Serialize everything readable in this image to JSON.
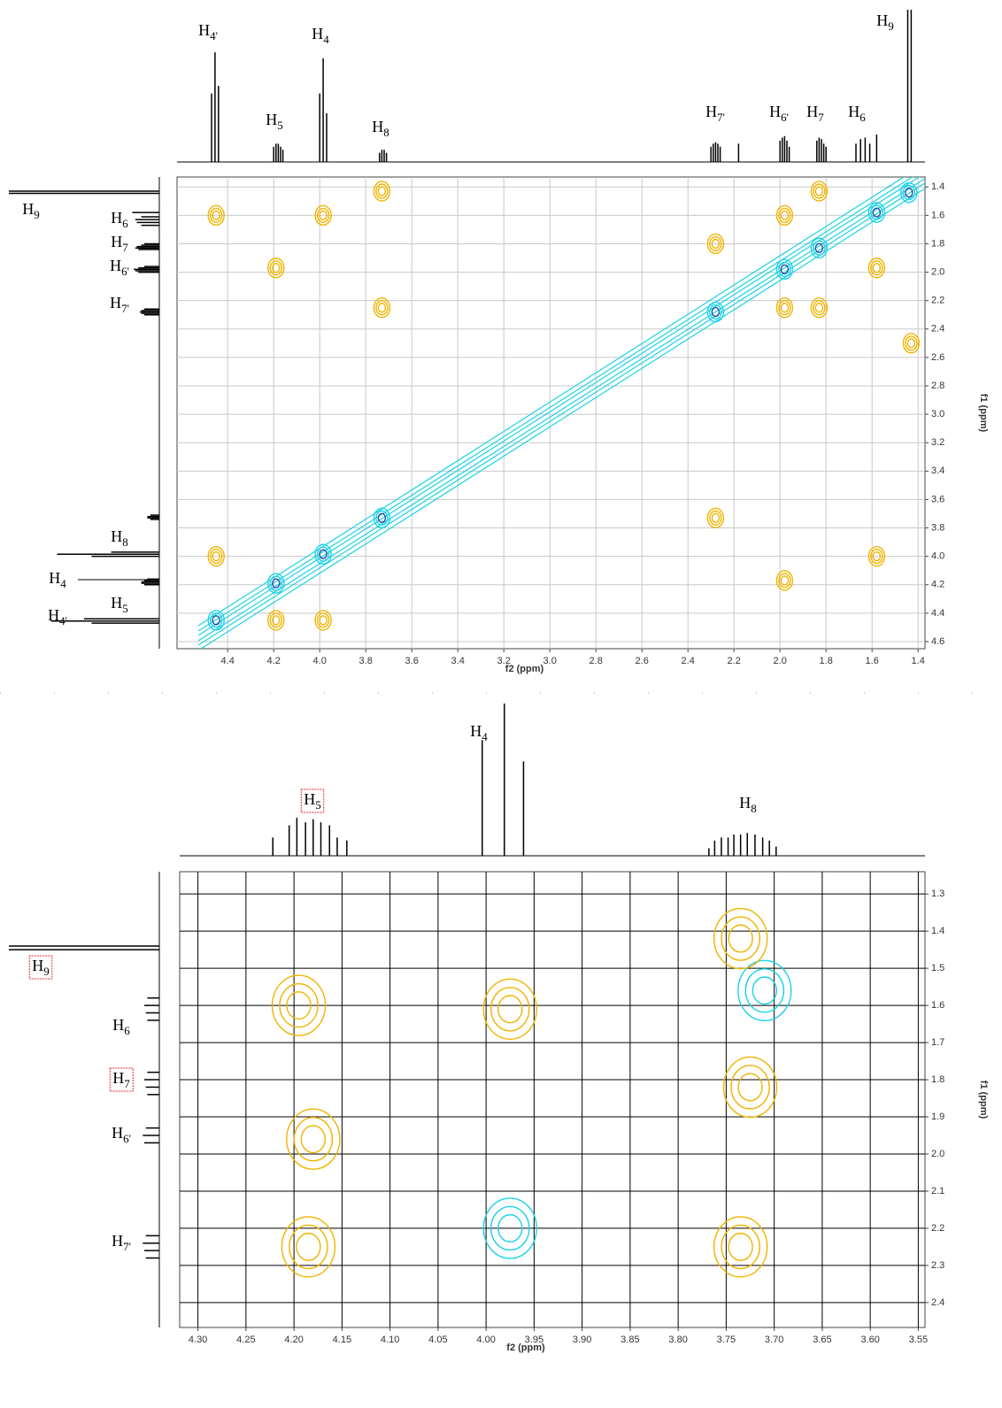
{
  "chart_data": [
    {
      "type": "contour",
      "x_label": "f2 (ppm)",
      "y_label": "f1 (ppm)",
      "xlim": [
        4.62,
        1.37
      ],
      "ylim": [
        1.33,
        4.65
      ],
      "xticks": [
        4.4,
        4.2,
        {
          "value": 4,
          "label": "4.0"
        },
        3.8,
        3.6,
        3.4,
        3.2,
        {
          "value": 3,
          "label": "3.0"
        },
        2.8,
        2.6,
        2.4,
        2.2,
        {
          "value": 2,
          "label": "2.0"
        },
        1.8,
        1.6,
        1.4
      ],
      "yticks": [
        1.4,
        1.6,
        1.8,
        {
          "value": 2,
          "label": "2.0"
        },
        2.2,
        2.4,
        2.6,
        2.8,
        {
          "value": 3,
          "label": "3.0"
        },
        3.2,
        3.4,
        3.6,
        3.8,
        {
          "value": 4,
          "label": "4.0"
        },
        4.2,
        4.4,
        4.6
      ],
      "grid": true,
      "grid_color": "#c8c8c8",
      "diagonal": true,
      "series": [
        {
          "color": "#1ad3e6",
          "center_color": "#2a4fa0",
          "x": [
            4.45,
            4.19,
            3.985,
            3.73,
            2.28,
            1.98,
            1.83,
            1.58,
            1.44
          ],
          "y": [
            4.45,
            4.19,
            3.985,
            3.73,
            2.28,
            1.98,
            1.83,
            1.58,
            1.44
          ]
        },
        {
          "color": "#f0b400",
          "x": [
            3.73,
            4.45,
            3.985,
            4.19,
            3.73,
            2.28,
            1.98,
            1.98,
            1.83,
            1.83,
            1.58,
            2.28,
            1.98,
            4.45,
            3.985,
            4.19,
            1.43,
            1.58
          ],
          "y": [
            1.43,
            1.6,
            1.6,
            1.97,
            2.25,
            1.8,
            1.6,
            2.25,
            2.25,
            1.43,
            1.97,
            3.73,
            4.17,
            4.0,
            4.45,
            4.45,
            2.5,
            4.0
          ]
        }
      ],
      "f2_projection": {
        "x": [
          4.47,
          4.455,
          4.44,
          4.2,
          4.19,
          4.18,
          4.17,
          4.16,
          4.0,
          3.985,
          3.97,
          3.74,
          3.73,
          3.72,
          3.71,
          2.3,
          2.29,
          2.28,
          2.27,
          2.26,
          2.18,
          2.0,
          1.99,
          1.98,
          1.97,
          1.96,
          1.84,
          1.83,
          1.82,
          1.81,
          1.8,
          1.67,
          1.65,
          1.63,
          1.61,
          1.58,
          1.445,
          1.43
        ],
        "values": [
          45,
          72,
          50,
          10,
          12,
          12,
          10,
          8,
          45,
          68,
          32,
          6,
          8,
          8,
          6,
          10,
          12,
          13,
          12,
          10,
          12,
          14,
          16,
          17,
          14,
          10,
          14,
          16,
          15,
          12,
          10,
          12,
          15,
          16,
          12,
          18,
          100,
          100
        ]
      },
      "f1_projection": {
        "x": [
          4.47,
          4.455,
          4.44,
          4.2,
          4.19,
          4.18,
          4.17,
          4.16,
          4.0,
          3.985,
          3.97,
          3.74,
          3.73,
          3.72,
          3.71,
          2.3,
          2.29,
          2.28,
          2.27,
          2.26,
          2.0,
          1.99,
          1.98,
          1.97,
          1.96,
          1.84,
          1.83,
          1.82,
          1.81,
          1.8,
          1.67,
          1.65,
          1.63,
          1.61,
          1.58,
          1.445,
          1.43
        ],
        "values": [
          45,
          72,
          50,
          10,
          12,
          12,
          10,
          8,
          45,
          68,
          32,
          6,
          8,
          8,
          6,
          10,
          12,
          13,
          12,
          10,
          14,
          16,
          17,
          14,
          10,
          14,
          16,
          15,
          12,
          10,
          12,
          15,
          16,
          12,
          18,
          100,
          100
        ]
      },
      "top_labels": [
        {
          "text": "H",
          "sub": "4'"
        },
        {
          "text": "H",
          "sub": "4"
        },
        {
          "text": "H",
          "sub": "5"
        },
        {
          "text": "H",
          "sub": "8"
        },
        {
          "text": "H",
          "sub": "7'"
        },
        {
          "text": "H",
          "sub": "6'"
        },
        {
          "text": "H",
          "sub": "7"
        },
        {
          "text": "H",
          "sub": "6"
        },
        {
          "text": "H",
          "sub": "9"
        }
      ],
      "left_labels": [
        {
          "text": "H",
          "sub": "9"
        },
        {
          "text": "H",
          "sub": "6"
        },
        {
          "text": "H",
          "sub": "7"
        },
        {
          "text": "H",
          "sub": "6'"
        },
        {
          "text": "H",
          "sub": "7'"
        },
        {
          "text": "H",
          "sub": "8"
        },
        {
          "text": "H",
          "sub": "4"
        },
        {
          "text": "H",
          "sub": "5"
        },
        {
          "text": "H",
          "sub": "4'"
        }
      ]
    },
    {
      "type": "contour",
      "x_label": "f2 (ppm)",
      "y_label": "f1 (ppm)",
      "xlim": [
        4.319,
        3.543
      ],
      "ylim": [
        1.24,
        2.467
      ],
      "xticks": [
        {
          "value": 4.3,
          "label": "4.30"
        },
        4.25,
        {
          "value": 4.2,
          "label": "4.20"
        },
        4.15,
        {
          "value": 4.1,
          "label": "4.10"
        },
        4.05,
        {
          "value": 4,
          "label": "4.00"
        },
        3.95,
        {
          "value": 3.9,
          "label": "3.90"
        },
        3.85,
        {
          "value": 3.8,
          "label": "3.80"
        },
        3.75,
        {
          "value": 3.7,
          "label": "3.70"
        },
        3.65,
        {
          "value": 3.6,
          "label": "3.60"
        },
        3.55
      ],
      "yticks": [
        1.3,
        1.4,
        1.5,
        1.6,
        1.7,
        1.8,
        1.9,
        {
          "value": 2,
          "label": "2.0"
        },
        2.1,
        2.2,
        2.3,
        2.4
      ],
      "grid": true,
      "grid_color": "#000000",
      "diagonal": false,
      "series": [
        {
          "color": "#1ad3e6",
          "x": [
            3.71,
            3.975
          ],
          "y": [
            1.56,
            2.2
          ]
        },
        {
          "color": "#f0b400",
          "x": [
            3.735,
            4.195,
            3.975,
            3.725,
            4.18,
            4.185,
            3.735
          ],
          "y": [
            1.42,
            1.6,
            1.61,
            1.82,
            1.96,
            2.25,
            2.25
          ]
        }
      ],
      "f2_projection": {
        "x": [
          4.222,
          4.205,
          4.197,
          4.188,
          4.18,
          4.172,
          4.163,
          4.155,
          4.145,
          4.004,
          3.981,
          3.961,
          3.768,
          3.762,
          3.755,
          3.748,
          3.742,
          3.735,
          3.728,
          3.72,
          3.712,
          3.705,
          3.698
        ],
        "values": [
          12,
          20,
          25,
          22,
          24,
          22,
          20,
          12,
          10,
          76,
          100,
          62,
          5,
          10,
          12,
          12,
          14,
          14,
          15,
          14,
          12,
          10,
          6
        ]
      },
      "f1_projection": {
        "x": [
          1.44,
          1.45,
          1.58,
          1.6,
          1.62,
          1.64,
          1.78,
          1.8,
          1.82,
          1.84,
          1.93,
          1.95,
          1.97,
          2.22,
          2.24,
          2.26,
          2.28
        ],
        "values": [
          100,
          100,
          8,
          10,
          9,
          8,
          8,
          10,
          9,
          8,
          9,
          11,
          10,
          9,
          11,
          10,
          9
        ]
      },
      "top_labels": [
        {
          "text": "H",
          "sub": "5",
          "boxed": true
        },
        {
          "text": "H",
          "sub": "4"
        },
        {
          "text": "H",
          "sub": "8"
        }
      ],
      "left_labels": [
        {
          "text": "H",
          "sub": "9",
          "boxed": true
        },
        {
          "text": "H",
          "sub": "6"
        },
        {
          "text": "H",
          "sub": "7",
          "boxed": true
        },
        {
          "text": "H",
          "sub": "6'"
        },
        {
          "text": "H",
          "sub": "7'"
        }
      ]
    }
  ]
}
